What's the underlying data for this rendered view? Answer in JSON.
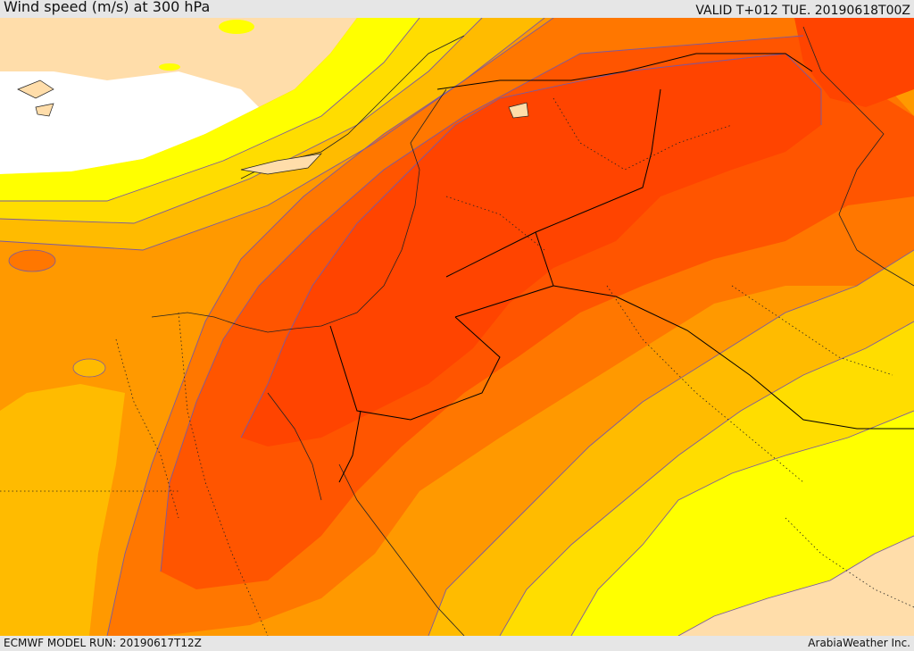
{
  "header": {
    "title": "Wind speed (m/s) at 300 hPa",
    "valid_time": "VALID T+012 TUE. 20190618T00Z"
  },
  "footer": {
    "model_run": "ECMWF MODEL RUN: 20190617T12Z",
    "credit": "ArabiaWeather Inc."
  },
  "colors": {
    "land_background": "#ffddaa",
    "sea_white": "#ffffff",
    "band_yellow": "#ffff00",
    "band_gold": "#ffdd00",
    "band_amber": "#ffbb00",
    "band_orange": "#ff9900",
    "band_dark_orange": "#ff7700",
    "band_red_orange": "#ff5500",
    "band_red": "#ff4400",
    "contour_line": "#7a5aa0",
    "border_line": "#000000"
  }
}
